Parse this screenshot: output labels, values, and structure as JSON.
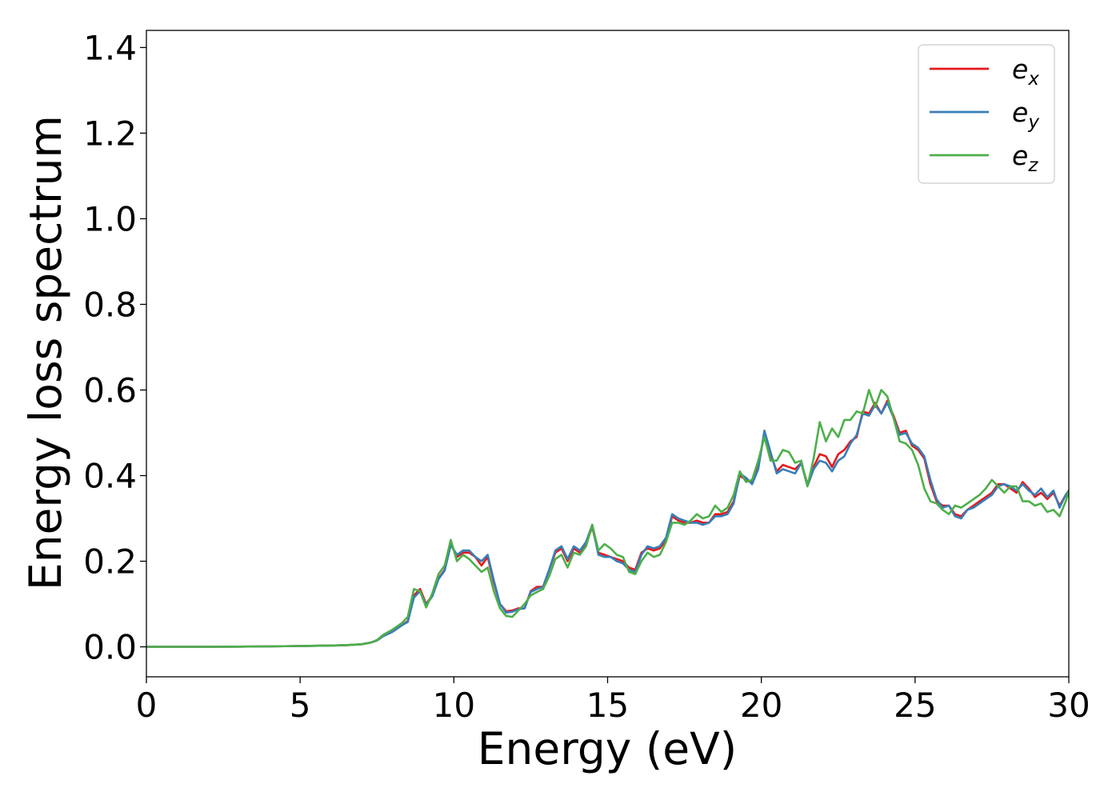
{
  "chart_data": {
    "type": "line",
    "xlabel": "Energy (eV)",
    "ylabel": "Energy loss spectrum",
    "xlim": [
      0,
      30
    ],
    "ylim": [
      -0.07,
      1.44
    ],
    "xticks": [
      0,
      5,
      10,
      15,
      20,
      25,
      30
    ],
    "yticks": [
      0.0,
      0.2,
      0.4,
      0.6,
      0.8,
      1.0,
      1.2,
      1.4
    ],
    "xtick_labels": [
      "0",
      "5",
      "10",
      "15",
      "20",
      "25",
      "30"
    ],
    "ytick_labels": [
      "0.0",
      "0.2",
      "0.4",
      "0.6",
      "0.8",
      "1.0",
      "1.2",
      "1.4"
    ],
    "grid": false,
    "legend_position": "top-right",
    "series": [
      {
        "name": "e_x",
        "legend_base": "e",
        "legend_sub": "x",
        "color": "#e41a1c",
        "x": [
          0,
          1,
          2,
          3,
          4,
          5,
          6,
          6.5,
          7,
          7.3,
          7.5,
          7.7,
          8.0,
          8.3,
          8.5,
          8.7,
          8.9,
          9.1,
          9.3,
          9.5,
          9.7,
          9.9,
          10.1,
          10.3,
          10.5,
          10.7,
          10.9,
          11.1,
          11.3,
          11.5,
          11.7,
          11.9,
          12.1,
          12.3,
          12.5,
          12.7,
          12.9,
          13.1,
          13.3,
          13.5,
          13.7,
          13.9,
          14.1,
          14.3,
          14.5,
          14.7,
          14.9,
          15.1,
          15.3,
          15.5,
          15.7,
          15.9,
          16.1,
          16.3,
          16.5,
          16.7,
          16.9,
          17.1,
          17.3,
          17.5,
          17.7,
          17.9,
          18.1,
          18.3,
          18.5,
          18.7,
          18.9,
          19.1,
          19.3,
          19.5,
          19.7,
          19.9,
          20.1,
          20.3,
          20.5,
          20.7,
          20.9,
          21.1,
          21.3,
          21.5,
          21.7,
          21.9,
          22.1,
          22.3,
          22.5,
          22.7,
          22.9,
          23.1,
          23.3,
          23.5,
          23.7,
          23.9,
          24.1,
          24.3,
          24.5,
          24.7,
          24.9,
          25.1,
          25.3,
          25.5,
          25.7,
          25.9,
          26.1,
          26.3,
          26.5,
          26.7,
          26.9,
          27.1,
          27.3,
          27.5,
          27.7,
          27.9,
          28.1,
          28.3,
          28.5,
          28.7,
          28.9,
          29.1,
          29.3,
          29.5,
          29.7,
          29.9,
          30.0
        ],
        "y": [
          0.0,
          0.0,
          0.0,
          0.0005,
          0.001,
          0.002,
          0.003,
          0.004,
          0.006,
          0.01,
          0.015,
          0.025,
          0.035,
          0.05,
          0.06,
          0.12,
          0.135,
          0.1,
          0.12,
          0.16,
          0.18,
          0.24,
          0.21,
          0.22,
          0.22,
          0.21,
          0.19,
          0.21,
          0.15,
          0.1,
          0.083,
          0.085,
          0.09,
          0.09,
          0.13,
          0.14,
          0.14,
          0.18,
          0.22,
          0.23,
          0.2,
          0.23,
          0.22,
          0.24,
          0.28,
          0.22,
          0.215,
          0.21,
          0.205,
          0.2,
          0.185,
          0.18,
          0.22,
          0.23,
          0.225,
          0.23,
          0.25,
          0.305,
          0.295,
          0.29,
          0.29,
          0.295,
          0.29,
          0.29,
          0.31,
          0.31,
          0.315,
          0.34,
          0.4,
          0.39,
          0.385,
          0.42,
          0.5,
          0.45,
          0.41,
          0.425,
          0.42,
          0.415,
          0.43,
          0.38,
          0.42,
          0.45,
          0.445,
          0.42,
          0.45,
          0.46,
          0.48,
          0.49,
          0.55,
          0.545,
          0.57,
          0.545,
          0.575,
          0.54,
          0.5,
          0.505,
          0.47,
          0.46,
          0.44,
          0.38,
          0.34,
          0.33,
          0.33,
          0.31,
          0.305,
          0.32,
          0.33,
          0.34,
          0.35,
          0.36,
          0.38,
          0.38,
          0.37,
          0.36,
          0.385,
          0.37,
          0.35,
          0.36,
          0.345,
          0.36,
          0.33,
          0.355,
          0.365
        ]
      },
      {
        "name": "e_y",
        "legend_base": "e",
        "legend_sub": "y",
        "color": "#377eb8",
        "x": [
          0,
          1,
          2,
          3,
          4,
          5,
          6,
          6.5,
          7,
          7.3,
          7.5,
          7.7,
          8.0,
          8.3,
          8.5,
          8.7,
          8.9,
          9.1,
          9.3,
          9.5,
          9.7,
          9.9,
          10.1,
          10.3,
          10.5,
          10.7,
          10.9,
          11.1,
          11.3,
          11.5,
          11.7,
          11.9,
          12.1,
          12.3,
          12.5,
          12.7,
          12.9,
          13.1,
          13.3,
          13.5,
          13.7,
          13.9,
          14.1,
          14.3,
          14.5,
          14.7,
          14.9,
          15.1,
          15.3,
          15.5,
          15.7,
          15.9,
          16.1,
          16.3,
          16.5,
          16.7,
          16.9,
          17.1,
          17.3,
          17.5,
          17.7,
          17.9,
          18.1,
          18.3,
          18.5,
          18.7,
          18.9,
          19.1,
          19.3,
          19.5,
          19.7,
          19.9,
          20.1,
          20.3,
          20.5,
          20.7,
          20.9,
          21.1,
          21.3,
          21.5,
          21.7,
          21.9,
          22.1,
          22.3,
          22.5,
          22.7,
          22.9,
          23.1,
          23.3,
          23.5,
          23.7,
          23.9,
          24.1,
          24.3,
          24.5,
          24.7,
          24.9,
          25.1,
          25.3,
          25.5,
          25.7,
          25.9,
          26.1,
          26.3,
          26.5,
          26.7,
          26.9,
          27.1,
          27.3,
          27.5,
          27.7,
          27.9,
          28.1,
          28.3,
          28.5,
          28.7,
          28.9,
          29.1,
          29.3,
          29.5,
          29.7,
          29.9,
          30.0
        ],
        "y": [
          0.0,
          0.0,
          0.0,
          0.0005,
          0.001,
          0.002,
          0.003,
          0.004,
          0.006,
          0.01,
          0.015,
          0.025,
          0.035,
          0.05,
          0.058,
          0.115,
          0.13,
          0.098,
          0.118,
          0.158,
          0.178,
          0.238,
          0.215,
          0.225,
          0.225,
          0.21,
          0.2,
          0.215,
          0.155,
          0.1,
          0.08,
          0.082,
          0.088,
          0.09,
          0.128,
          0.135,
          0.14,
          0.18,
          0.225,
          0.235,
          0.205,
          0.235,
          0.225,
          0.245,
          0.285,
          0.215,
          0.21,
          0.21,
          0.2,
          0.195,
          0.18,
          0.175,
          0.215,
          0.235,
          0.23,
          0.235,
          0.255,
          0.31,
          0.3,
          0.295,
          0.29,
          0.29,
          0.285,
          0.29,
          0.305,
          0.305,
          0.31,
          0.335,
          0.405,
          0.395,
          0.38,
          0.415,
          0.505,
          0.455,
          0.405,
          0.415,
          0.41,
          0.405,
          0.43,
          0.375,
          0.415,
          0.435,
          0.43,
          0.41,
          0.435,
          0.445,
          0.475,
          0.495,
          0.545,
          0.54,
          0.565,
          0.545,
          0.57,
          0.535,
          0.495,
          0.5,
          0.475,
          0.465,
          0.445,
          0.39,
          0.345,
          0.325,
          0.33,
          0.305,
          0.3,
          0.32,
          0.325,
          0.335,
          0.345,
          0.355,
          0.375,
          0.38,
          0.375,
          0.365,
          0.38,
          0.365,
          0.355,
          0.37,
          0.35,
          0.365,
          0.325,
          0.355,
          0.365
        ]
      },
      {
        "name": "e_z",
        "legend_base": "e",
        "legend_sub": "z",
        "color": "#4daf4a",
        "x": [
          0,
          1,
          2,
          3,
          4,
          5,
          6,
          6.5,
          7,
          7.3,
          7.5,
          7.7,
          8.0,
          8.3,
          8.5,
          8.7,
          8.9,
          9.1,
          9.3,
          9.5,
          9.7,
          9.9,
          10.1,
          10.3,
          10.5,
          10.7,
          10.9,
          11.1,
          11.3,
          11.5,
          11.7,
          11.9,
          12.1,
          12.3,
          12.5,
          12.7,
          12.9,
          13.1,
          13.3,
          13.5,
          13.7,
          13.9,
          14.1,
          14.3,
          14.5,
          14.7,
          14.9,
          15.1,
          15.3,
          15.5,
          15.7,
          15.9,
          16.1,
          16.3,
          16.5,
          16.7,
          16.9,
          17.1,
          17.3,
          17.5,
          17.7,
          17.9,
          18.1,
          18.3,
          18.5,
          18.7,
          18.9,
          19.1,
          19.3,
          19.5,
          19.7,
          19.9,
          20.1,
          20.3,
          20.5,
          20.7,
          20.9,
          21.1,
          21.3,
          21.5,
          21.7,
          21.9,
          22.1,
          22.3,
          22.5,
          22.7,
          22.9,
          23.1,
          23.3,
          23.5,
          23.7,
          23.9,
          24.1,
          24.3,
          24.5,
          24.7,
          24.9,
          25.1,
          25.3,
          25.5,
          25.7,
          25.9,
          26.1,
          26.3,
          26.5,
          26.7,
          26.9,
          27.1,
          27.3,
          27.5,
          27.7,
          27.9,
          28.1,
          28.3,
          28.5,
          28.7,
          28.9,
          29.1,
          29.3,
          29.5,
          29.7,
          29.9,
          30.0
        ],
        "y": [
          0.0,
          0.0,
          0.0,
          0.0005,
          0.001,
          0.002,
          0.003,
          0.004,
          0.006,
          0.01,
          0.016,
          0.028,
          0.04,
          0.055,
          0.07,
          0.135,
          0.13,
          0.092,
          0.125,
          0.17,
          0.19,
          0.25,
          0.2,
          0.215,
          0.205,
          0.19,
          0.175,
          0.185,
          0.13,
          0.09,
          0.072,
          0.07,
          0.085,
          0.1,
          0.12,
          0.128,
          0.135,
          0.165,
          0.205,
          0.215,
          0.185,
          0.22,
          0.215,
          0.235,
          0.285,
          0.225,
          0.24,
          0.23,
          0.215,
          0.21,
          0.175,
          0.17,
          0.2,
          0.22,
          0.21,
          0.215,
          0.245,
          0.29,
          0.29,
          0.285,
          0.295,
          0.31,
          0.3,
          0.305,
          0.33,
          0.315,
          0.325,
          0.355,
          0.41,
          0.385,
          0.39,
          0.435,
          0.49,
          0.435,
          0.435,
          0.46,
          0.455,
          0.43,
          0.435,
          0.375,
          0.44,
          0.525,
          0.48,
          0.51,
          0.49,
          0.53,
          0.53,
          0.55,
          0.545,
          0.6,
          0.56,
          0.6,
          0.585,
          0.535,
          0.48,
          0.475,
          0.46,
          0.425,
          0.37,
          0.34,
          0.335,
          0.32,
          0.31,
          0.33,
          0.325,
          0.335,
          0.345,
          0.355,
          0.37,
          0.39,
          0.375,
          0.36,
          0.375,
          0.375,
          0.34,
          0.34,
          0.33,
          0.335,
          0.315,
          0.32,
          0.305,
          0.34,
          0.365
        ]
      }
    ]
  }
}
